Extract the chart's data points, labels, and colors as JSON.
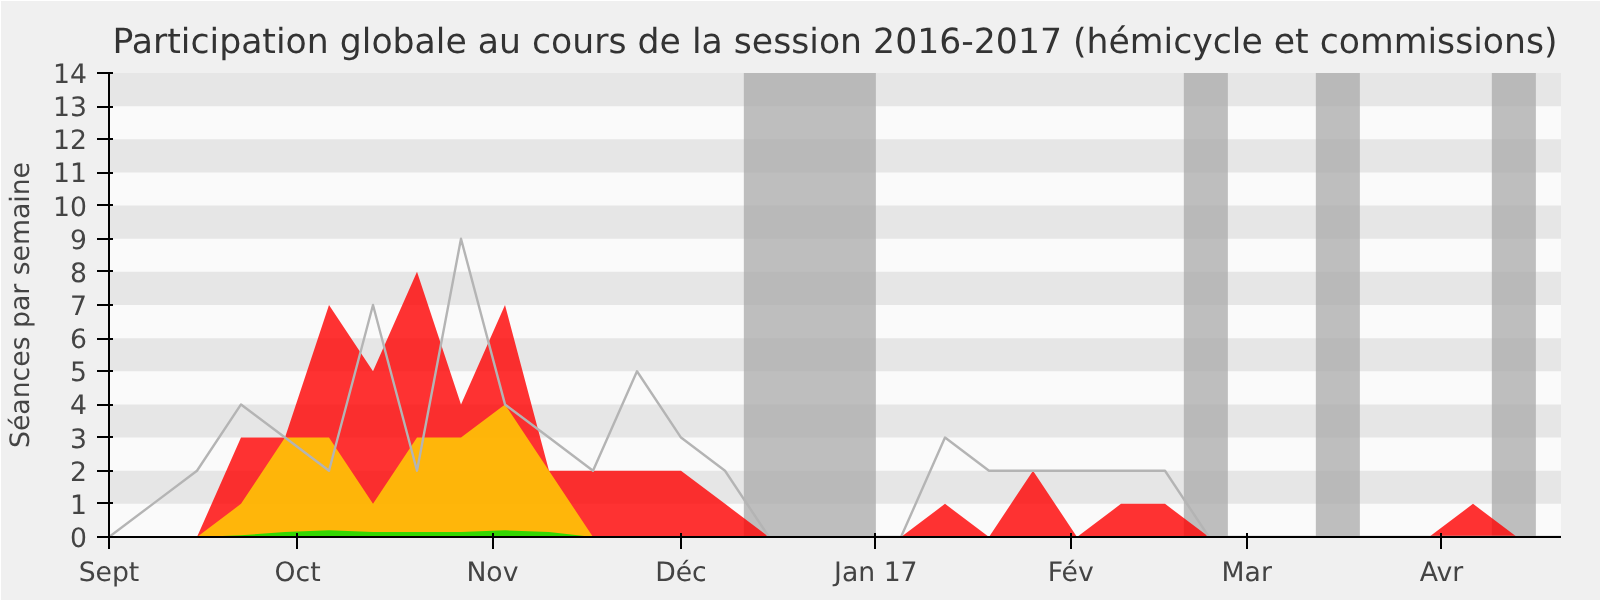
{
  "chart_data": {
    "type": "area",
    "title": "Participation globale au cours de la session 2016-2017 (hémicycle et commissions)",
    "ylabel": "Séances par semaine",
    "x": [
      "2016-09-01",
      "2016-09-08",
      "2016-09-15",
      "2016-09-22",
      "2016-09-29",
      "2016-10-06",
      "2016-10-13",
      "2016-10-20",
      "2016-10-27",
      "2016-11-03",
      "2016-11-10",
      "2016-11-17",
      "2016-11-24",
      "2016-12-01",
      "2016-12-08",
      "2016-12-15",
      "2016-12-22",
      "2016-12-29",
      "2017-01-05",
      "2017-01-12",
      "2017-01-19",
      "2017-01-26",
      "2017-02-02",
      "2017-02-09",
      "2017-02-16",
      "2017-02-23",
      "2017-03-02",
      "2017-03-09",
      "2017-03-16",
      "2017-03-23",
      "2017-03-30",
      "2017-04-06",
      "2017-04-13",
      "2017-04-20"
    ],
    "xlim": [
      "2016-09-01",
      "2017-04-20"
    ],
    "xticks": [
      {
        "value": "2016-09-01",
        "label": "Sept"
      },
      {
        "value": "2016-10-01",
        "label": "Oct"
      },
      {
        "value": "2016-11-01",
        "label": "Nov"
      },
      {
        "value": "2016-12-01",
        "label": "Déc"
      },
      {
        "value": "2017-01-01",
        "label": "Jan 17"
      },
      {
        "value": "2017-02-01",
        "label": "Fév"
      },
      {
        "value": "2017-03-01",
        "label": "Mar"
      },
      {
        "value": "2017-04-01",
        "label": "Avr"
      }
    ],
    "ylim": [
      0,
      14
    ],
    "yticks": [
      0,
      1,
      2,
      3,
      4,
      5,
      6,
      7,
      8,
      9,
      10,
      11,
      12,
      13,
      14
    ],
    "grid": false,
    "bands": [
      {
        "axis": "y",
        "from": 1,
        "to": 2,
        "color": "#e6e6e6"
      },
      {
        "axis": "y",
        "from": 3,
        "to": 4,
        "color": "#e6e6e6"
      },
      {
        "axis": "y",
        "from": 5,
        "to": 6,
        "color": "#e6e6e6"
      },
      {
        "axis": "y",
        "from": 7,
        "to": 8,
        "color": "#e6e6e6"
      },
      {
        "axis": "y",
        "from": 9,
        "to": 10,
        "color": "#e6e6e6"
      },
      {
        "axis": "y",
        "from": 11,
        "to": 12,
        "color": "#e6e6e6"
      },
      {
        "axis": "y",
        "from": 13,
        "to": 14,
        "color": "#e6e6e6"
      },
      {
        "axis": "x",
        "from": "2016-12-11",
        "to": "2017-01-01",
        "color": "#aaaaaa"
      },
      {
        "axis": "x",
        "from": "2017-02-19",
        "to": "2017-02-26",
        "color": "#aaaaaa"
      },
      {
        "axis": "x",
        "from": "2017-03-12",
        "to": "2017-03-19",
        "color": "#aaaaaa"
      },
      {
        "axis": "x",
        "from": "2017-04-09",
        "to": "2017-04-16",
        "color": "#aaaaaa"
      }
    ],
    "series": [
      {
        "type": "line",
        "color": "#b4b4b4",
        "values": [
          0,
          1,
          2,
          4,
          3,
          2,
          7,
          2,
          9,
          4,
          3,
          2,
          5,
          3,
          2,
          0,
          0,
          0,
          0,
          3,
          2,
          2,
          2,
          2,
          2,
          0,
          0,
          0,
          0,
          0,
          0,
          0,
          0,
          0
        ]
      },
      {
        "color": "#ff0000",
        "values": [
          0,
          0,
          0,
          3,
          3,
          7,
          5,
          8,
          4,
          7,
          2,
          2,
          2,
          2,
          1,
          0,
          0,
          0,
          0,
          1,
          0,
          2,
          0,
          1,
          1,
          0,
          0,
          0,
          0,
          0,
          0,
          1,
          0,
          0
        ]
      },
      {
        "color": "#ffd700",
        "values": [
          0,
          0,
          0,
          1,
          3,
          3,
          1,
          3,
          3,
          4,
          2,
          0,
          0,
          0,
          0,
          0,
          0,
          0,
          0,
          0,
          0,
          0,
          0,
          0,
          0,
          0,
          0,
          0,
          0,
          0,
          0,
          0,
          0,
          0
        ]
      },
      {
        "color": "#00e000",
        "values": [
          0,
          0,
          0,
          0.05,
          0.15,
          0.2,
          0.15,
          0.15,
          0.15,
          0.2,
          0.15,
          0,
          0,
          0,
          0,
          0,
          0,
          0,
          0,
          0,
          0,
          0,
          0,
          0,
          0,
          0,
          0,
          0,
          0,
          0,
          0,
          0,
          0,
          0
        ]
      }
    ]
  }
}
